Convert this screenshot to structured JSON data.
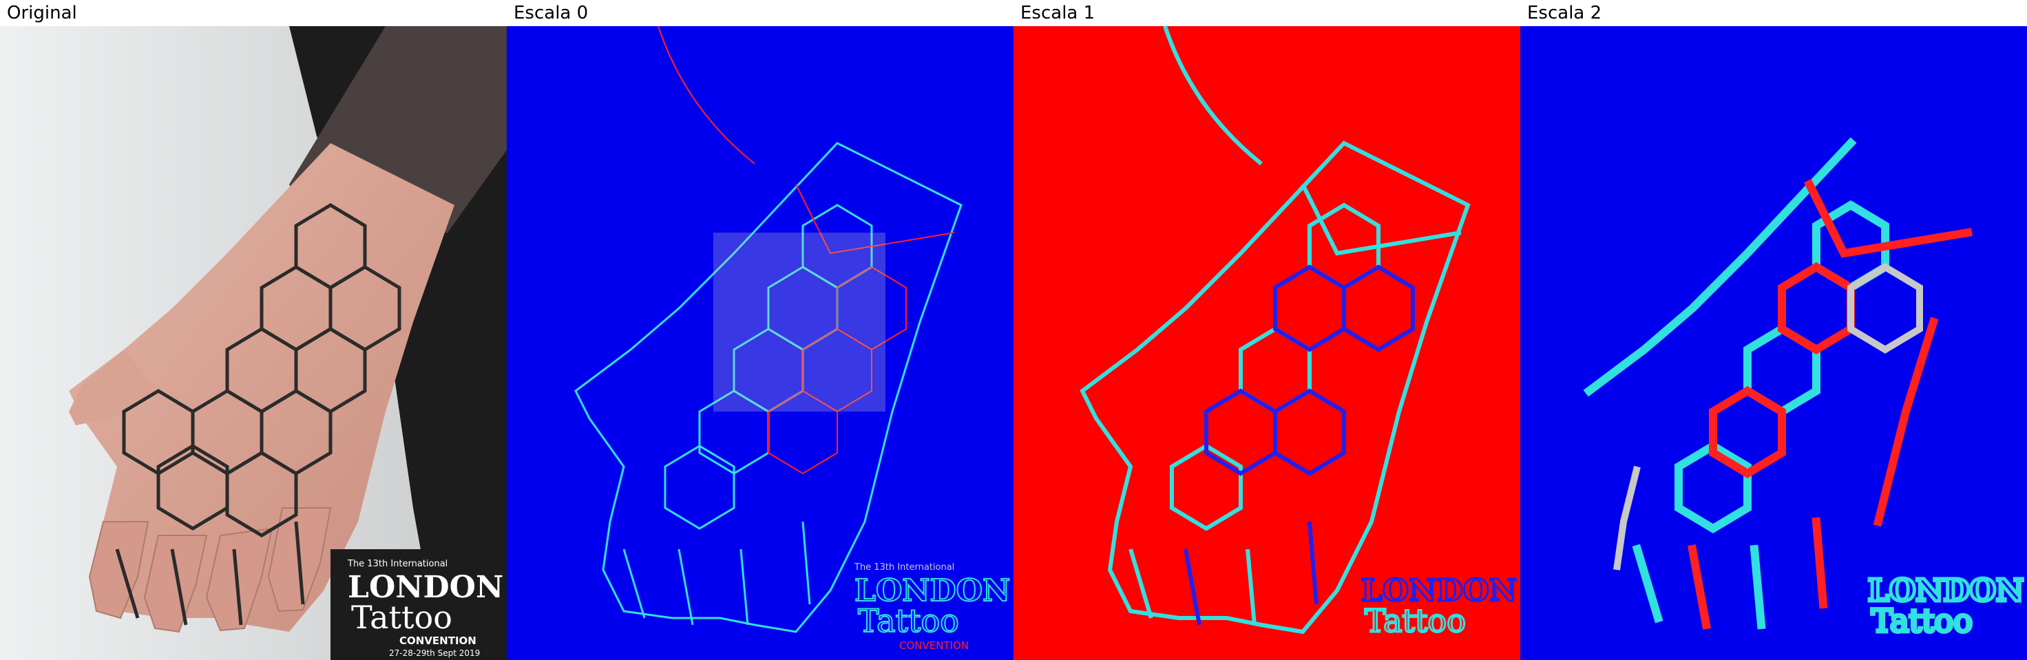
{
  "panels": [
    {
      "caption": "Original",
      "kind": "photo",
      "colors": {
        "background": "#e8e9ea",
        "skin": "#d8a091",
        "tattoo": "#2b2b2b",
        "sleeve": "#1a1a1a"
      }
    },
    {
      "caption": "Escala 0",
      "kind": "label-map",
      "colors": {
        "background": "#0000ee",
        "edge_a": "#33e0e0",
        "edge_b": "#ff2020",
        "edge_c": "#c8c8c8"
      }
    },
    {
      "caption": "Escala 1",
      "kind": "label-map",
      "colors": {
        "background": "#ff0000",
        "edge_a": "#33e0e0",
        "edge_b": "#2020ee",
        "edge_c": "#c8c8c8"
      }
    },
    {
      "caption": "Escala 2",
      "kind": "label-map",
      "colors": {
        "background": "#0000ee",
        "edge_a": "#33e0e0",
        "edge_b": "#ff2020",
        "edge_c": "#c8c8c8"
      }
    }
  ],
  "poster": {
    "line1": "The 13th International",
    "line2": "LONDON",
    "line3": "Tattoo",
    "line4": "CONVENTION",
    "line5": "27-28-29th Sept 2019"
  }
}
